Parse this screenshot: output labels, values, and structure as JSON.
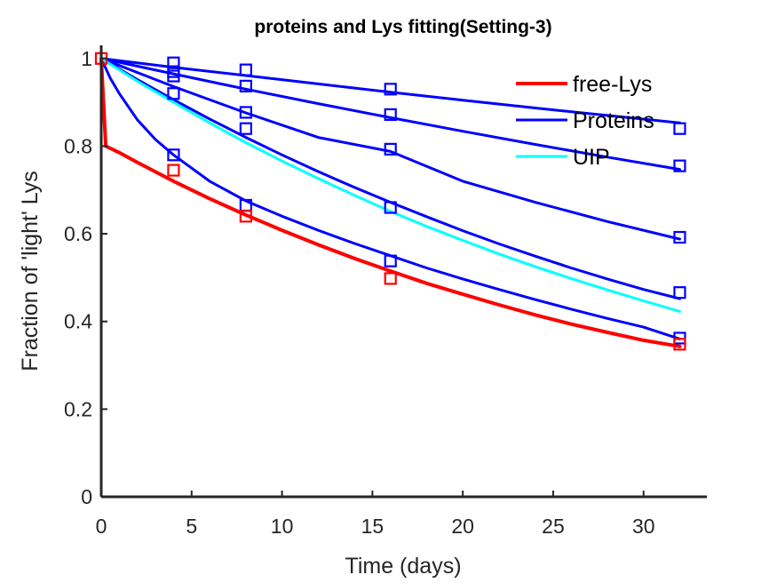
{
  "chart_data": {
    "type": "line",
    "title": "proteins and Lys fitting(Setting-3)",
    "xlabel": "Time (days)",
    "ylabel": "Fraction of  'light'  Lys",
    "xlim": [
      0,
      33.5
    ],
    "ylim": [
      0,
      1.03
    ],
    "xticks": [
      "0",
      "5",
      "10",
      "15",
      "20",
      "25",
      "30"
    ],
    "yticks": [
      "0",
      "0.2",
      "0.4",
      "0.6",
      "0.8",
      "1"
    ],
    "legend_position": "top-right",
    "colors": {
      "free_lys": "#ff0000",
      "proteins": "#0000ff",
      "uip": "#00ffff"
    },
    "series": [
      {
        "name": "free-Lys",
        "color": "#ff0000",
        "line": {
          "x": [
            0,
            0.25,
            1,
            2,
            4,
            6,
            8,
            10,
            12,
            14,
            16,
            18,
            20,
            22,
            24,
            26,
            28,
            30,
            32
          ],
          "y": [
            1,
            0.8,
            0.785,
            0.763,
            0.72,
            0.68,
            0.643,
            0.608,
            0.575,
            0.544,
            0.515,
            0.487,
            0.462,
            0.438,
            0.415,
            0.394,
            0.375,
            0.357,
            0.343
          ]
        },
        "markers": {
          "x": [
            0,
            4,
            8,
            16,
            32
          ],
          "y": [
            1.0,
            0.745,
            0.64,
            0.498,
            0.348
          ]
        }
      },
      {
        "name": "Proteins",
        "color": "#0000ff",
        "line": {
          "x": [
            0,
            0.5,
            1,
            2,
            3,
            4,
            6,
            8,
            10,
            12,
            14,
            16,
            18,
            20,
            22,
            24,
            26,
            28,
            30,
            32
          ],
          "y": [
            1,
            0.955,
            0.92,
            0.86,
            0.815,
            0.78,
            0.72,
            0.675,
            0.64,
            0.608,
            0.578,
            0.55,
            0.522,
            0.497,
            0.473,
            0.45,
            0.428,
            0.407,
            0.387,
            0.36
          ]
        },
        "markers": {
          "x": [
            4,
            8,
            16,
            32
          ],
          "y": [
            0.78,
            0.665,
            0.538,
            0.362
          ]
        }
      },
      {
        "name": "",
        "color": "#0000ff",
        "line": {
          "x": [
            0,
            2,
            4,
            6,
            8,
            10,
            12,
            14,
            16,
            18,
            20,
            22,
            24,
            26,
            28,
            30,
            32
          ],
          "y": [
            1,
            0.952,
            0.906,
            0.862,
            0.82,
            0.78,
            0.742,
            0.706,
            0.672,
            0.639,
            0.607,
            0.577,
            0.549,
            0.522,
            0.497,
            0.473,
            0.452
          ]
        },
        "markers": {
          "x": [
            4,
            8,
            16,
            32
          ],
          "y": [
            0.92,
            0.84,
            0.66,
            0.466
          ]
        }
      },
      {
        "name": "",
        "color": "#0000ff",
        "line": {
          "x": [
            0,
            4,
            8,
            12,
            16,
            20,
            24,
            28,
            32
          ],
          "y": [
            1,
            0.936,
            0.876,
            0.82,
            0.788,
            0.72,
            0.672,
            0.628,
            0.588
          ]
        },
        "markers": {
          "x": [
            4,
            8,
            16,
            32
          ],
          "y": [
            0.96,
            0.877,
            0.793,
            0.592
          ]
        }
      },
      {
        "name": "",
        "color": "#0000ff",
        "line": {
          "x": [
            0,
            4,
            8,
            12,
            16,
            20,
            24,
            28,
            32
          ],
          "y": [
            1,
            0.965,
            0.93,
            0.897,
            0.865,
            0.834,
            0.804,
            0.775,
            0.747
          ]
        },
        "markers": {
          "x": [
            4,
            8,
            16,
            32
          ],
          "y": [
            0.97,
            0.937,
            0.872,
            0.755
          ]
        }
      },
      {
        "name": "",
        "color": "#0000ff",
        "line": {
          "x": [
            0,
            4,
            8,
            12,
            16,
            20,
            24,
            28,
            32
          ],
          "y": [
            1,
            0.98,
            0.961,
            0.942,
            0.923,
            0.905,
            0.887,
            0.87,
            0.853
          ]
        },
        "markers": {
          "x": [
            4,
            8,
            16,
            32
          ],
          "y": [
            0.99,
            0.974,
            0.93,
            0.84
          ]
        }
      },
      {
        "name": "UIP",
        "color": "#00ffff",
        "line": {
          "x": [
            0,
            2,
            4,
            6,
            8,
            10,
            12,
            14,
            16,
            18,
            20,
            22,
            24,
            26,
            28,
            30,
            32
          ],
          "y": [
            1,
            0.948,
            0.9,
            0.853,
            0.808,
            0.766,
            0.726,
            0.688,
            0.651,
            0.617,
            0.585,
            0.554,
            0.525,
            0.498,
            0.472,
            0.447,
            0.423
          ]
        },
        "markers": {
          "x": [],
          "y": []
        }
      }
    ],
    "legend": [
      {
        "label": "free-Lys",
        "color": "#ff0000"
      },
      {
        "label": "Proteins",
        "color": "#0000ff"
      },
      {
        "label": "UIP",
        "color": "#00ffff"
      }
    ]
  }
}
